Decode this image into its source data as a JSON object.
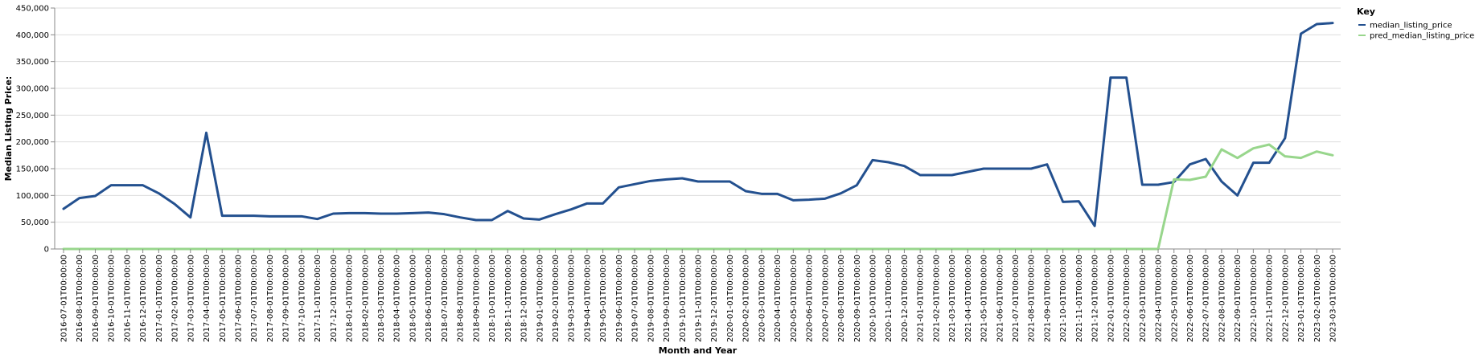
{
  "chart_data": {
    "type": "line",
    "xlabel": "Month and Year",
    "ylabel": "Median Listing Price:",
    "ylim": [
      0,
      450000
    ],
    "yticks": [
      "0",
      "50,000",
      "100,000",
      "150,000",
      "200,000",
      "250,000",
      "300,000",
      "350,000",
      "400,000",
      "450,000"
    ],
    "grid": "horizontal",
    "legend": {
      "title": "Key",
      "position": "top-right"
    },
    "x": [
      "2016-07-01T00:00:00",
      "2016-08-01T00:00:00",
      "2016-09-01T00:00:00",
      "2016-10-01T00:00:00",
      "2016-11-01T00:00:00",
      "2016-12-01T00:00:00",
      "2017-01-01T00:00:00",
      "2017-02-01T00:00:00",
      "2017-03-01T00:00:00",
      "2017-04-01T00:00:00",
      "2017-05-01T00:00:00",
      "2017-06-01T00:00:00",
      "2017-07-01T00:00:00",
      "2017-08-01T00:00:00",
      "2017-09-01T00:00:00",
      "2017-10-01T00:00:00",
      "2017-11-01T00:00:00",
      "2017-12-01T00:00:00",
      "2018-01-01T00:00:00",
      "2018-02-01T00:00:00",
      "2018-03-01T00:00:00",
      "2018-04-01T00:00:00",
      "2018-05-01T00:00:00",
      "2018-06-01T00:00:00",
      "2018-07-01T00:00:00",
      "2018-08-01T00:00:00",
      "2018-09-01T00:00:00",
      "2018-10-01T00:00:00",
      "2018-11-01T00:00:00",
      "2018-12-01T00:00:00",
      "2019-01-01T00:00:00",
      "2019-02-01T00:00:00",
      "2019-03-01T00:00:00",
      "2019-04-01T00:00:00",
      "2019-05-01T00:00:00",
      "2019-06-01T00:00:00",
      "2019-07-01T00:00:00",
      "2019-08-01T00:00:00",
      "2019-09-01T00:00:00",
      "2019-10-01T00:00:00",
      "2019-11-01T00:00:00",
      "2019-12-01T00:00:00",
      "2020-01-01T00:00:00",
      "2020-02-01T00:00:00",
      "2020-03-01T00:00:00",
      "2020-04-01T00:00:00",
      "2020-05-01T00:00:00",
      "2020-06-01T00:00:00",
      "2020-07-01T00:00:00",
      "2020-08-01T00:00:00",
      "2020-09-01T00:00:00",
      "2020-10-01T00:00:00",
      "2020-11-01T00:00:00",
      "2020-12-01T00:00:00",
      "2021-01-01T00:00:00",
      "2021-02-01T00:00:00",
      "2021-03-01T00:00:00",
      "2021-04-01T00:00:00",
      "2021-05-01T00:00:00",
      "2021-06-01T00:00:00",
      "2021-07-01T00:00:00",
      "2021-08-01T00:00:00",
      "2021-09-01T00:00:00",
      "2021-10-01T00:00:00",
      "2021-11-01T00:00:00",
      "2021-12-01T00:00:00",
      "2022-01-01T00:00:00",
      "2022-02-01T00:00:00",
      "2022-03-01T00:00:00",
      "2022-04-01T00:00:00",
      "2022-05-01T00:00:00",
      "2022-06-01T00:00:00",
      "2022-07-01T00:00:00",
      "2022-08-01T00:00:00",
      "2022-09-01T00:00:00",
      "2022-10-01T00:00:00",
      "2022-11-01T00:00:00",
      "2022-12-01T00:00:00",
      "2023-01-01T00:00:00",
      "2023-02-01T00:00:00",
      "2023-03-01T00:00:00"
    ],
    "series": [
      {
        "name": "median_listing_price",
        "color": "#23508f",
        "values": [
          75000,
          95000,
          99000,
          119000,
          119000,
          119000,
          104000,
          84000,
          59000,
          217000,
          62000,
          62000,
          62000,
          61000,
          61000,
          61000,
          56000,
          66000,
          67000,
          67000,
          66000,
          66000,
          67000,
          68000,
          65000,
          59000,
          54000,
          54000,
          71000,
          57000,
          55000,
          65000,
          74000,
          85000,
          85000,
          115000,
          121000,
          127000,
          130000,
          132000,
          126000,
          126000,
          126000,
          108000,
          103000,
          103000,
          91000,
          92000,
          94000,
          104000,
          119000,
          166000,
          162000,
          155000,
          138000,
          138000,
          138000,
          144000,
          150000,
          150000,
          150000,
          150000,
          158000,
          88000,
          89000,
          43000,
          320000,
          320000,
          120000,
          120000,
          125000,
          158000,
          168000,
          126000,
          100000,
          161000,
          161000,
          207000,
          402000,
          420000,
          422000
        ]
      },
      {
        "name": "pred_median_listing_price",
        "color": "#98d68c",
        "values": [
          0,
          0,
          0,
          0,
          0,
          0,
          0,
          0,
          0,
          0,
          0,
          0,
          0,
          0,
          0,
          0,
          0,
          0,
          0,
          0,
          0,
          0,
          0,
          0,
          0,
          0,
          0,
          0,
          0,
          0,
          0,
          0,
          0,
          0,
          0,
          0,
          0,
          0,
          0,
          0,
          0,
          0,
          0,
          0,
          0,
          0,
          0,
          0,
          0,
          0,
          0,
          0,
          0,
          0,
          0,
          0,
          0,
          0,
          0,
          0,
          0,
          0,
          0,
          0,
          0,
          0,
          0,
          0,
          0,
          0,
          130000,
          129000,
          135000,
          186000,
          170000,
          188000,
          195000,
          173000,
          170000,
          182000,
          175000
        ]
      }
    ]
  }
}
